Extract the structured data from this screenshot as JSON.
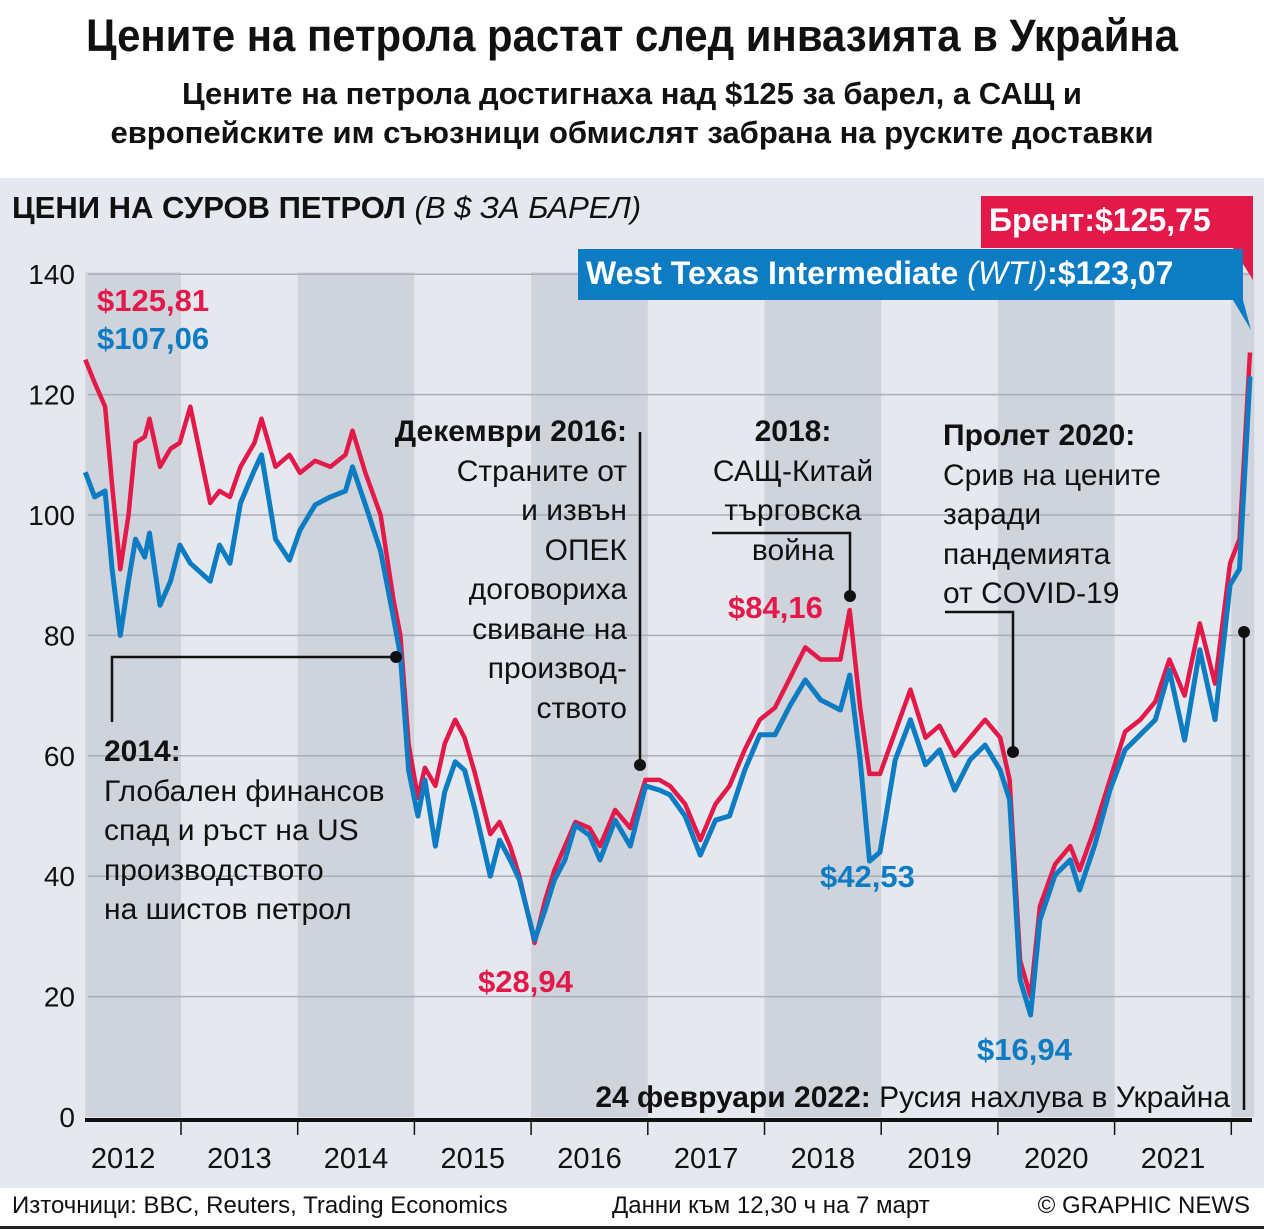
{
  "header": {
    "title": "Цените на петрола растат след инвазията в Украйна",
    "subtitle_line1": "Цените на петрола достигнаха над $125 за барел, а САЩ и",
    "subtitle_line2": "европейските им съюзници обмислят забрана на руските доставки"
  },
  "colors": {
    "brent": "#e3194a",
    "wti": "#0d7cc2",
    "background": "#e5e8ee",
    "band": "#cfd3dc"
  },
  "chart_data": {
    "type": "line",
    "title": "ЦЕНИ НА СУРОВ ПЕТРОЛ",
    "title_unit": "(В $ ЗА БАРЕЛ)",
    "ylim": [
      0,
      140
    ],
    "yticks": [
      "0",
      "20",
      "40",
      "60",
      "80",
      "100",
      "120",
      "140"
    ],
    "xlim": [
      2012.18,
      2022.18
    ],
    "xticks": [
      "2012",
      "2013",
      "2014",
      "2015",
      "2016",
      "2017",
      "2018",
      "2019",
      "2020",
      "2021"
    ],
    "grid": true,
    "legend": {
      "brent_label": "Брент:",
      "brent_value": "$125,75",
      "wti_label": "West Texas Intermediate ",
      "wti_abbr": "(WTI)",
      "wti_value": ":$123,07"
    },
    "x": [
      2012.18,
      2012.26,
      2012.35,
      2012.41,
      2012.48,
      2012.55,
      2012.61,
      2012.69,
      2012.73,
      2012.82,
      2012.91,
      2012.99,
      2013.08,
      2013.25,
      2013.33,
      2013.42,
      2013.51,
      2013.63,
      2013.69,
      2013.81,
      2013.93,
      2014.02,
      2014.15,
      2014.28,
      2014.41,
      2014.47,
      2014.58,
      2014.71,
      2014.82,
      2014.88,
      2014.95,
      2015.03,
      2015.09,
      2015.18,
      2015.26,
      2015.35,
      2015.43,
      2015.52,
      2015.65,
      2015.73,
      2015.82,
      2015.9,
      2016.03,
      2016.12,
      2016.2,
      2016.29,
      2016.38,
      2016.5,
      2016.59,
      2016.72,
      2016.85,
      2016.98,
      2017.1,
      2017.19,
      2017.32,
      2017.45,
      2017.58,
      2017.7,
      2017.83,
      2017.96,
      2018.09,
      2018.22,
      2018.35,
      2018.48,
      2018.65,
      2018.73,
      2018.82,
      2018.9,
      2018.99,
      2019.12,
      2019.25,
      2019.38,
      2019.5,
      2019.63,
      2019.76,
      2019.89,
      2020.02,
      2020.1,
      2020.19,
      2020.28,
      2020.36,
      2020.49,
      2020.62,
      2020.7,
      2020.83,
      2020.96,
      2021.09,
      2021.22,
      2021.35,
      2021.47,
      2021.6,
      2021.73,
      2021.86,
      2021.99,
      2022.07,
      2022.16
    ],
    "series": [
      {
        "name": "Брент",
        "values": [
          125.8,
          122,
          118,
          105,
          91,
          100,
          112,
          113,
          116,
          108,
          111,
          112,
          118,
          102,
          104,
          103,
          108,
          112,
          116,
          108,
          110,
          107,
          109,
          108,
          110,
          114,
          107,
          100,
          86,
          80,
          62,
          53,
          58,
          55,
          62,
          66,
          63,
          57,
          47,
          49,
          45,
          40,
          28.9,
          36,
          41,
          45,
          49,
          48,
          45,
          51,
          48,
          56,
          56,
          55,
          52,
          46,
          52,
          55,
          61,
          66,
          68,
          73,
          78,
          76,
          76,
          84.2,
          68,
          57,
          57,
          64,
          71,
          63,
          65,
          60,
          63,
          66,
          63,
          56,
          26,
          20,
          35,
          42,
          45,
          41,
          48,
          56,
          64,
          66,
          69,
          76,
          70,
          82,
          72,
          92,
          96,
          127
        ]
      },
      {
        "name": "West Texas Intermediate (WTI)",
        "values": [
          107.1,
          103,
          104,
          91,
          80,
          89,
          96,
          93,
          97,
          85,
          89,
          95,
          92,
          89,
          95,
          92,
          102,
          107.5,
          110,
          96,
          92.5,
          97.5,
          101.7,
          103,
          104,
          108,
          101.7,
          94,
          83,
          76.7,
          57.6,
          50,
          56,
          45,
          54,
          59,
          57.6,
          51,
          40,
          46,
          42.7,
          39.4,
          29.4,
          34.4,
          39.4,
          42.7,
          48.5,
          46.8,
          42.7,
          49.3,
          45,
          55,
          54.3,
          53.5,
          50,
          43.5,
          49.3,
          50,
          57.6,
          63.5,
          63.5,
          68.4,
          72.6,
          69.3,
          67.6,
          73.4,
          59.3,
          42.5,
          44,
          59.3,
          66,
          58.5,
          61,
          54.3,
          59.3,
          61.8,
          57.6,
          52.7,
          22.8,
          16.94,
          32.7,
          40.2,
          42.7,
          37.7,
          45.2,
          54.3,
          61,
          63.5,
          66,
          74.2,
          62.6,
          77.6,
          66,
          88.4,
          91,
          123
        ]
      }
    ],
    "value_labels": {
      "brent_start": "$125,81",
      "wti_start": "$107,06",
      "brent_2016_low": "$28,94",
      "brent_2018_high": "$84,16",
      "wti_2018_low": "$42,53",
      "wti_2020_low": "$16,94"
    },
    "annotations": {
      "a2014": {
        "head": "2014",
        "lines": [
          "Глобален финансов",
          "спад и ръст на US",
          "производството",
          "на шистов петрол"
        ]
      },
      "a2016": {
        "head": "Декември 2016",
        "lines": [
          "Страните от",
          "и извън",
          "ОПЕК",
          "договориха",
          "свиване  на",
          "производ-",
          "ството"
        ]
      },
      "a2018": {
        "head": "2018",
        "lines": [
          "САЩ-Китай",
          "търговска",
          "война"
        ]
      },
      "a2020": {
        "head": "Пролет 2020",
        "lines": [
          "Срив на цените",
          "заради",
          "пандемията",
          "от COVID-19"
        ]
      },
      "a2022": {
        "head": "24 февруари 2022",
        "text": "Русия нахлува в Украйна"
      }
    }
  },
  "footer": {
    "sources": "Източници: BBC, Reuters, Trading Economics",
    "data_time": "Данни към 12,30 ч на 7 март",
    "credit": "© GRAPHIC NEWS"
  }
}
